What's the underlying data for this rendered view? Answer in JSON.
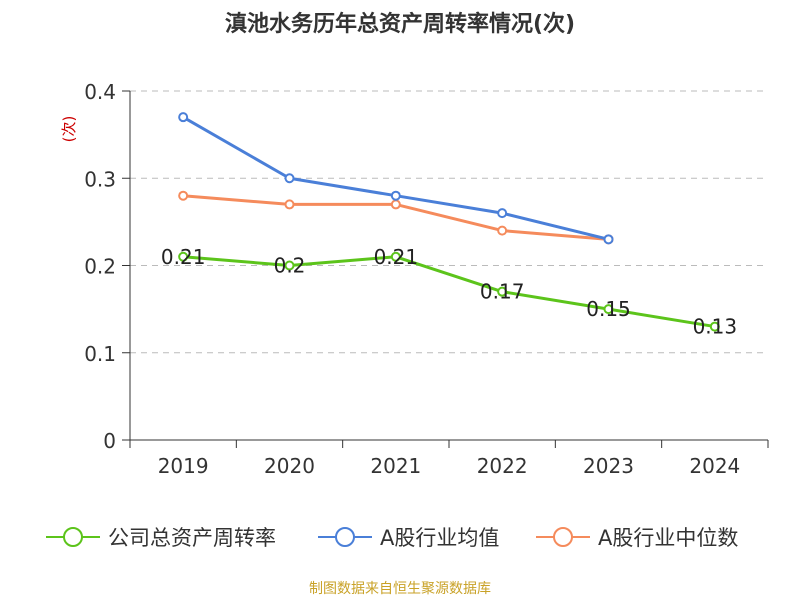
{
  "title": "滇池水务历年总资产周转率情况(次)",
  "source": "制图数据来自恒生聚源数据库",
  "colors": {
    "company": "#5cc41b",
    "industry_avg": "#4a7fd8",
    "industry_median": "#f58b5c",
    "grid": "#bbbbbb",
    "axis": "#333333",
    "ylabel": "#cc0000",
    "source": "#c9a227"
  },
  "chart_data": {
    "type": "line",
    "title": "滇池水务历年总资产周转率情况(次)",
    "ylabel": "(次)",
    "xlabel": "",
    "categories": [
      "2019",
      "2020",
      "2021",
      "2022",
      "2023",
      "2024"
    ],
    "yticks": [
      "0",
      "0.1",
      "0.2",
      "0.3",
      "0.4"
    ],
    "ylim": [
      0,
      0.4
    ],
    "grid": true,
    "legend_position": "bottom",
    "series": [
      {
        "name": "公司总资产周转率",
        "key": "company",
        "values": [
          0.21,
          0.2,
          0.21,
          0.17,
          0.15,
          0.13
        ],
        "labels": [
          "0.21",
          "0.2",
          "0.21",
          "0.17",
          "0.15",
          "0.13"
        ]
      },
      {
        "name": "A股行业均值",
        "key": "industry_avg",
        "values": [
          0.37,
          0.3,
          0.28,
          0.26,
          0.23,
          null
        ]
      },
      {
        "name": "A股行业中位数",
        "key": "industry_median",
        "values": [
          0.28,
          0.27,
          0.27,
          0.24,
          0.23,
          null
        ]
      }
    ]
  }
}
